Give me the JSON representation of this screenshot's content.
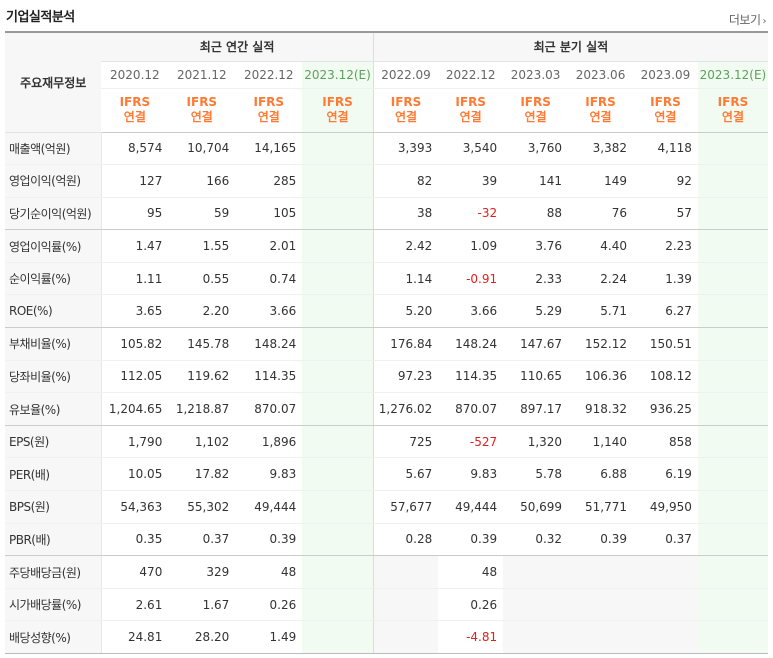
{
  "header": {
    "title": "기업실적분석",
    "more": "더보기"
  },
  "table": {
    "row_header": "주요재무정보",
    "groups": {
      "annual": "최근 연간 실적",
      "quarter": "최근 분기 실적"
    },
    "periods": [
      "2020.12",
      "2021.12",
      "2022.12",
      "2023.12(E)",
      "2022.09",
      "2022.12",
      "2023.03",
      "2023.06",
      "2023.09",
      "2023.12(E)"
    ],
    "ifrs_line1": "IFRS",
    "ifrs_line2": "연결",
    "rows": [
      {
        "label": "매출액(억원)",
        "values": [
          "8,574",
          "10,704",
          "14,165",
          "",
          "3,393",
          "3,540",
          "3,760",
          "3,382",
          "4,118",
          ""
        ]
      },
      {
        "label": "영업이익(억원)",
        "values": [
          "127",
          "166",
          "285",
          "",
          "82",
          "39",
          "141",
          "149",
          "92",
          ""
        ]
      },
      {
        "label": "당기순이익(억원)",
        "values": [
          "95",
          "59",
          "105",
          "",
          "38",
          "-32",
          "88",
          "76",
          "57",
          ""
        ]
      },
      {
        "label": "영업이익률(%)",
        "values": [
          "1.47",
          "1.55",
          "2.01",
          "",
          "2.42",
          "1.09",
          "3.76",
          "4.40",
          "2.23",
          ""
        ]
      },
      {
        "label": "순이익률(%)",
        "values": [
          "1.11",
          "0.55",
          "0.74",
          "",
          "1.14",
          "-0.91",
          "2.33",
          "2.24",
          "1.39",
          ""
        ]
      },
      {
        "label": "ROE(%)",
        "values": [
          "3.65",
          "2.20",
          "3.66",
          "",
          "5.20",
          "3.66",
          "5.29",
          "5.71",
          "6.27",
          ""
        ]
      },
      {
        "label": "부채비율(%)",
        "values": [
          "105.82",
          "145.78",
          "148.24",
          "",
          "176.84",
          "148.24",
          "147.67",
          "152.12",
          "150.51",
          ""
        ]
      },
      {
        "label": "당좌비율(%)",
        "values": [
          "112.05",
          "119.62",
          "114.35",
          "",
          "97.23",
          "114.35",
          "110.65",
          "106.36",
          "108.12",
          ""
        ]
      },
      {
        "label": "유보율(%)",
        "values": [
          "1,204.65",
          "1,218.87",
          "870.07",
          "",
          "1,276.02",
          "870.07",
          "897.17",
          "918.32",
          "936.25",
          ""
        ]
      },
      {
        "label": "EPS(원)",
        "values": [
          "1,790",
          "1,102",
          "1,896",
          "",
          "725",
          "-527",
          "1,320",
          "1,140",
          "858",
          ""
        ]
      },
      {
        "label": "PER(배)",
        "values": [
          "10.05",
          "17.82",
          "9.83",
          "",
          "5.67",
          "9.83",
          "5.78",
          "6.88",
          "6.19",
          ""
        ]
      },
      {
        "label": "BPS(원)",
        "values": [
          "54,363",
          "55,302",
          "49,444",
          "",
          "57,677",
          "49,444",
          "50,699",
          "51,771",
          "49,950",
          ""
        ]
      },
      {
        "label": "PBR(배)",
        "values": [
          "0.35",
          "0.37",
          "0.39",
          "",
          "0.28",
          "0.39",
          "0.32",
          "0.39",
          "0.37",
          ""
        ]
      },
      {
        "label": "주당배당금(원)",
        "values": [
          "470",
          "329",
          "48",
          "",
          "",
          "48",
          "",
          "",
          "",
          ""
        ]
      },
      {
        "label": "시가배당률(%)",
        "values": [
          "2.61",
          "1.67",
          "0.26",
          "",
          "",
          "0.26",
          "",
          "",
          "",
          ""
        ]
      },
      {
        "label": "배당성향(%)",
        "values": [
          "24.81",
          "28.20",
          "1.49",
          "",
          "",
          "-4.81",
          "",
          "",
          "",
          ""
        ]
      }
    ]
  },
  "colors": {
    "ifrs": "#ff7a33",
    "negative": "#e0201d",
    "estimate_bg": "#f2fbf2",
    "estimate_text": "#5aa15a"
  }
}
